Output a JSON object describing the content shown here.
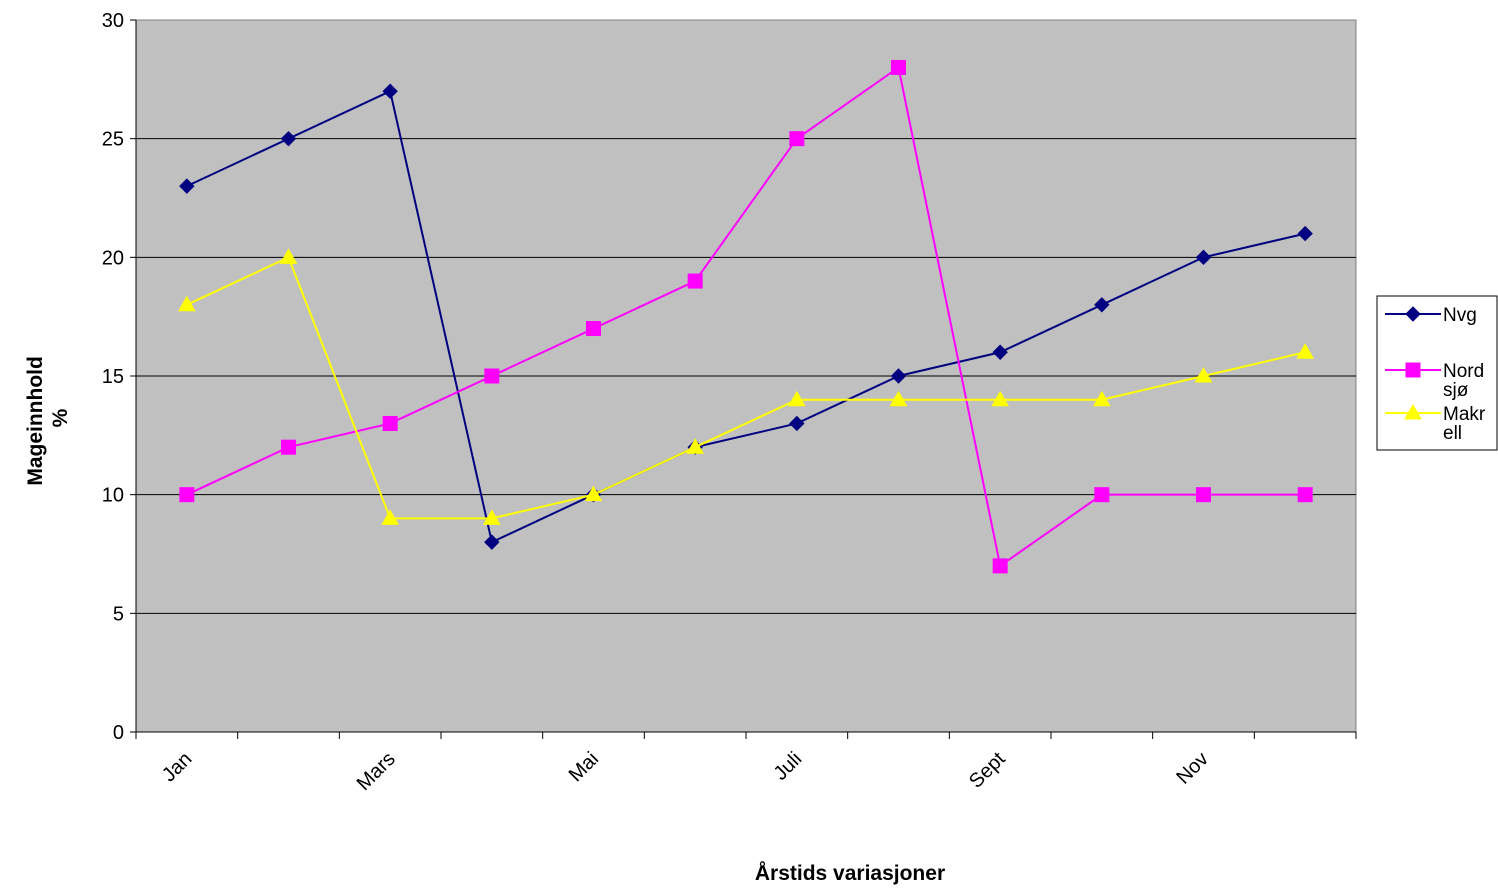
{
  "chart_data": {
    "type": "line",
    "title": "",
    "xlabel": "Årstids variasjoner",
    "ylabel_lines": [
      "Mageinnhold",
      "%"
    ],
    "categories": [
      "Jan",
      "",
      "Mars",
      "",
      "Mai",
      "",
      "Juli",
      "",
      "Sept",
      "",
      "Nov",
      ""
    ],
    "ylim": [
      0,
      30
    ],
    "yticks": [
      "0",
      "5",
      "10",
      "15",
      "20",
      "25",
      "30"
    ],
    "grid": true,
    "legend_position": "right",
    "plot_background": "#c0c0c0",
    "series": [
      {
        "name": "Nvg",
        "legend_lines": [
          "Nvg"
        ],
        "color": "#000080",
        "marker": "diamond",
        "values": [
          23,
          25,
          27,
          8,
          10,
          12,
          13,
          15,
          16,
          18,
          20,
          21
        ]
      },
      {
        "name": "Nord sjø",
        "legend_lines": [
          "Nord",
          "sjø"
        ],
        "color": "#ff00ff",
        "marker": "square",
        "values": [
          10,
          12,
          13,
          15,
          17,
          19,
          25,
          28,
          7,
          10,
          10,
          10
        ]
      },
      {
        "name": "Makrell",
        "legend_lines": [
          "Makr",
          "ell"
        ],
        "color": "#ffff00",
        "marker": "triangle",
        "values": [
          18,
          20,
          9,
          9,
          10,
          12,
          14,
          14,
          14,
          14,
          15,
          16
        ]
      }
    ]
  }
}
